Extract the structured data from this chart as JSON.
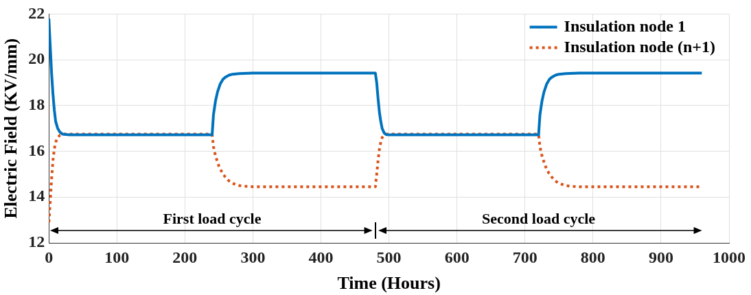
{
  "chart_data": {
    "type": "line",
    "xlabel": "Time (Hours)",
    "ylabel": "Electric Field (KV/mm)",
    "xlim": [
      0,
      1000
    ],
    "xticks": [
      0,
      100,
      200,
      300,
      400,
      500,
      600,
      700,
      800,
      900,
      1000
    ],
    "ylim": [
      12,
      22
    ],
    "yticks": [
      12,
      14,
      16,
      18,
      20,
      22
    ],
    "grid": true,
    "legend": "top right",
    "marker": "none",
    "annotations": [
      "First load cycle",
      "Second load cycle"
    ],
    "series": [
      {
        "name": "Insulation node 1",
        "color": "#0072bd",
        "line_style": "solid",
        "x": [
          0,
          2,
          4,
          6,
          8,
          10,
          13,
          16,
          20,
          30,
          100,
          200,
          240,
          242,
          245,
          248,
          252,
          256,
          260,
          265,
          270,
          280,
          300,
          400,
          480,
          482,
          484,
          486,
          488,
          490,
          493,
          496,
          500,
          600,
          720,
          722,
          725,
          728,
          732,
          736,
          740,
          745,
          750,
          760,
          780,
          900,
          960
        ],
        "values": [
          21.8,
          20.6,
          19.4,
          18.5,
          17.8,
          17.3,
          17.0,
          16.85,
          16.75,
          16.72,
          16.72,
          16.72,
          16.72,
          17.6,
          18.2,
          18.6,
          18.95,
          19.15,
          19.25,
          19.33,
          19.37,
          19.4,
          19.42,
          19.42,
          19.42,
          19.0,
          18.3,
          17.7,
          17.3,
          17.0,
          16.8,
          16.73,
          16.72,
          16.72,
          16.72,
          17.6,
          18.2,
          18.6,
          18.95,
          19.15,
          19.25,
          19.33,
          19.37,
          19.4,
          19.42,
          19.42,
          19.42
        ]
      },
      {
        "name": "Insulation node (n+1)",
        "color": "#d95319",
        "line_style": "dotted",
        "x": [
          0,
          2,
          4,
          6,
          8,
          10,
          13,
          16,
          20,
          100,
          240,
          242,
          245,
          250,
          255,
          260,
          265,
          270,
          280,
          290,
          300,
          400,
          480,
          482,
          484,
          486,
          488,
          490,
          493,
          496,
          500,
          600,
          720,
          722,
          725,
          730,
          735,
          740,
          745,
          750,
          760,
          770,
          780,
          900,
          960
        ],
        "values": [
          12.9,
          13.8,
          14.8,
          15.6,
          16.1,
          16.4,
          16.6,
          16.7,
          16.75,
          16.75,
          16.75,
          16.2,
          15.8,
          15.35,
          15.05,
          14.85,
          14.7,
          14.6,
          14.5,
          14.47,
          14.45,
          14.45,
          14.45,
          15.0,
          15.6,
          16.1,
          16.4,
          16.6,
          16.7,
          16.75,
          16.75,
          16.75,
          16.75,
          16.2,
          15.8,
          15.35,
          15.05,
          14.85,
          14.7,
          14.6,
          14.5,
          14.47,
          14.45,
          14.45,
          14.45
        ]
      }
    ]
  }
}
